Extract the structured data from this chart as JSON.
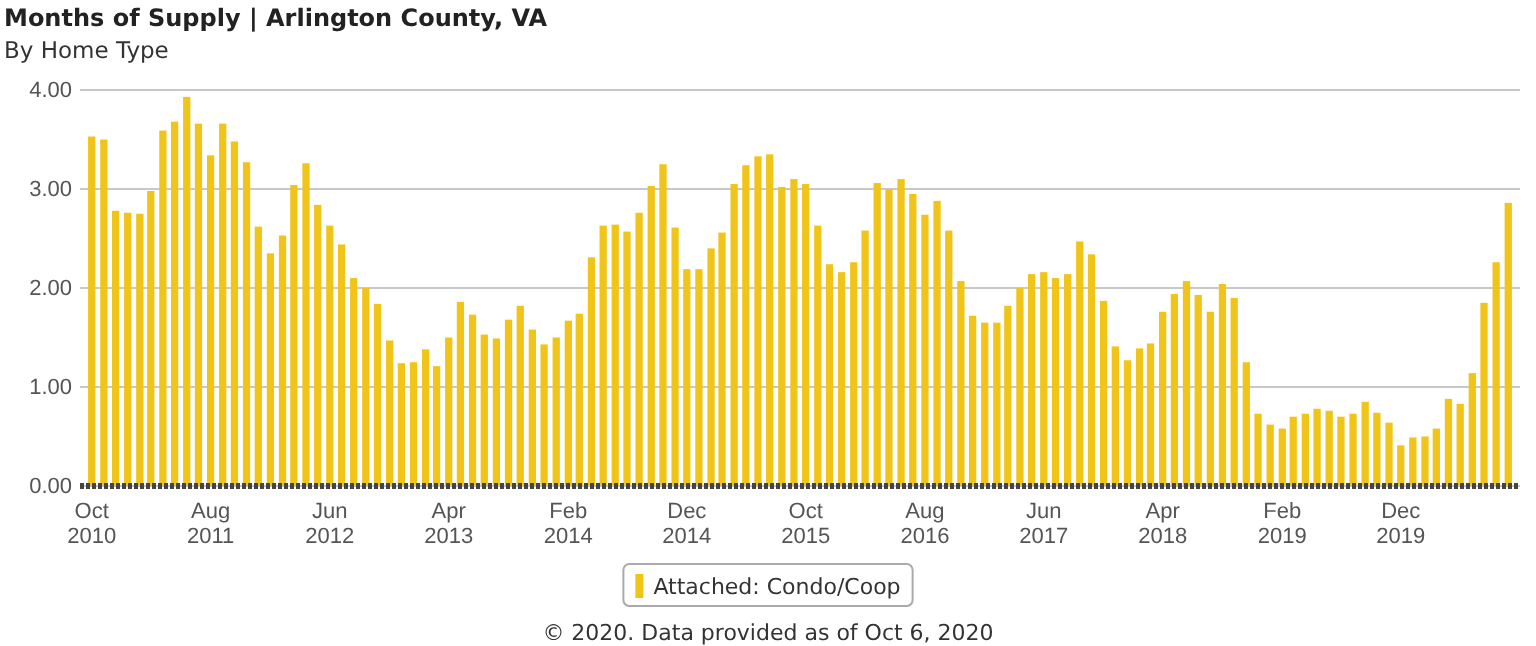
{
  "chart_data": {
    "type": "bar",
    "title": "Months of Supply | Arlington County, VA",
    "subtitle": "By Home Type",
    "x": [
      "2010-10",
      "2010-11",
      "2010-12",
      "2011-01",
      "2011-02",
      "2011-03",
      "2011-04",
      "2011-05",
      "2011-06",
      "2011-07",
      "2011-08",
      "2011-09",
      "2011-10",
      "2011-11",
      "2011-12",
      "2012-01",
      "2012-02",
      "2012-03",
      "2012-04",
      "2012-05",
      "2012-06",
      "2012-07",
      "2012-08",
      "2012-09",
      "2012-10",
      "2012-11",
      "2012-12",
      "2013-01",
      "2013-02",
      "2013-03",
      "2013-04",
      "2013-05",
      "2013-06",
      "2013-07",
      "2013-08",
      "2013-09",
      "2013-10",
      "2013-11",
      "2013-12",
      "2014-01",
      "2014-02",
      "2014-03",
      "2014-04",
      "2014-05",
      "2014-06",
      "2014-07",
      "2014-08",
      "2014-09",
      "2014-10",
      "2014-11",
      "2014-12",
      "2015-01",
      "2015-02",
      "2015-03",
      "2015-04",
      "2015-05",
      "2015-06",
      "2015-07",
      "2015-08",
      "2015-09",
      "2015-10",
      "2015-11",
      "2015-12",
      "2016-01",
      "2016-02",
      "2016-03",
      "2016-04",
      "2016-05",
      "2016-06",
      "2016-07",
      "2016-08",
      "2016-09",
      "2016-10",
      "2016-11",
      "2016-12",
      "2017-01",
      "2017-02",
      "2017-03",
      "2017-04",
      "2017-05",
      "2017-06",
      "2017-07",
      "2017-08",
      "2017-09",
      "2017-10",
      "2017-11",
      "2017-12",
      "2018-01",
      "2018-02",
      "2018-03",
      "2018-04",
      "2018-05",
      "2018-06",
      "2018-07",
      "2018-08",
      "2018-09",
      "2018-10",
      "2018-11",
      "2018-12",
      "2019-01",
      "2019-02",
      "2019-03",
      "2019-04",
      "2019-05",
      "2019-06",
      "2019-07",
      "2019-08",
      "2019-09",
      "2019-10",
      "2019-11",
      "2019-12",
      "2020-01",
      "2020-02",
      "2020-03",
      "2020-04",
      "2020-05",
      "2020-06",
      "2020-07",
      "2020-08",
      "2020-09"
    ],
    "series": [
      {
        "name": "Attached: Condo/Coop",
        "color": "#f0c419",
        "values": [
          3.53,
          3.5,
          2.78,
          2.76,
          2.75,
          2.98,
          3.59,
          3.68,
          3.93,
          3.66,
          3.34,
          3.66,
          3.48,
          3.27,
          2.62,
          2.35,
          2.53,
          3.04,
          3.26,
          2.84,
          2.63,
          2.44,
          2.1,
          2.0,
          1.84,
          1.47,
          1.24,
          1.25,
          1.38,
          1.21,
          1.5,
          1.86,
          1.73,
          1.53,
          1.49,
          1.68,
          1.82,
          1.58,
          1.43,
          1.5,
          1.67,
          1.74,
          2.31,
          2.63,
          2.64,
          2.57,
          2.76,
          3.03,
          3.25,
          2.61,
          2.19,
          2.19,
          2.4,
          2.56,
          3.05,
          3.24,
          3.33,
          3.35,
          3.02,
          3.1,
          3.05,
          2.63,
          2.24,
          2.16,
          2.26,
          2.58,
          3.06,
          3.0,
          3.1,
          2.95,
          2.74,
          2.88,
          2.58,
          2.07,
          1.72,
          1.65,
          1.65,
          1.82,
          2.0,
          2.14,
          2.16,
          2.1,
          2.14,
          2.47,
          2.34,
          1.87,
          1.41,
          1.27,
          1.39,
          1.44,
          1.76,
          1.94,
          2.07,
          1.93,
          1.76,
          2.04,
          1.9,
          1.25,
          0.73,
          0.62,
          0.58,
          0.7,
          0.73,
          0.78,
          0.76,
          0.7,
          0.73,
          0.85,
          0.74,
          0.64,
          0.41,
          0.49,
          0.5,
          0.58,
          0.88,
          0.83,
          1.14,
          1.85,
          2.26,
          2.86
        ]
      }
    ],
    "xlim": [
      "2010-09",
      "2020-10"
    ],
    "xticks": [
      {
        "value": "2010-10",
        "label": "Oct 2010"
      },
      {
        "value": "2011-08",
        "label": "Aug 2011"
      },
      {
        "value": "2012-06",
        "label": "Jun 2012"
      },
      {
        "value": "2013-04",
        "label": "Apr 2013"
      },
      {
        "value": "2014-02",
        "label": "Feb 2014"
      },
      {
        "value": "2014-12",
        "label": "Dec 2014"
      },
      {
        "value": "2015-10",
        "label": "Oct 2015"
      },
      {
        "value": "2016-08",
        "label": "Aug 2016"
      },
      {
        "value": "2017-06",
        "label": "Jun 2017"
      },
      {
        "value": "2018-04",
        "label": "Apr 2018"
      },
      {
        "value": "2019-02",
        "label": "Feb 2019"
      },
      {
        "value": "2019-12",
        "label": "Dec 2019"
      }
    ],
    "ylim": [
      0,
      4
    ],
    "yticks": [
      {
        "value": 0,
        "label": "0.00"
      },
      {
        "value": 1,
        "label": "1.00"
      },
      {
        "value": 2,
        "label": "2.00"
      },
      {
        "value": 3,
        "label": "3.00"
      },
      {
        "value": 4,
        "label": "4.00"
      }
    ],
    "grid": "y",
    "legend": "bottom",
    "annotations": [
      "© 2020. Data provided as of Oct 6, 2020"
    ]
  }
}
